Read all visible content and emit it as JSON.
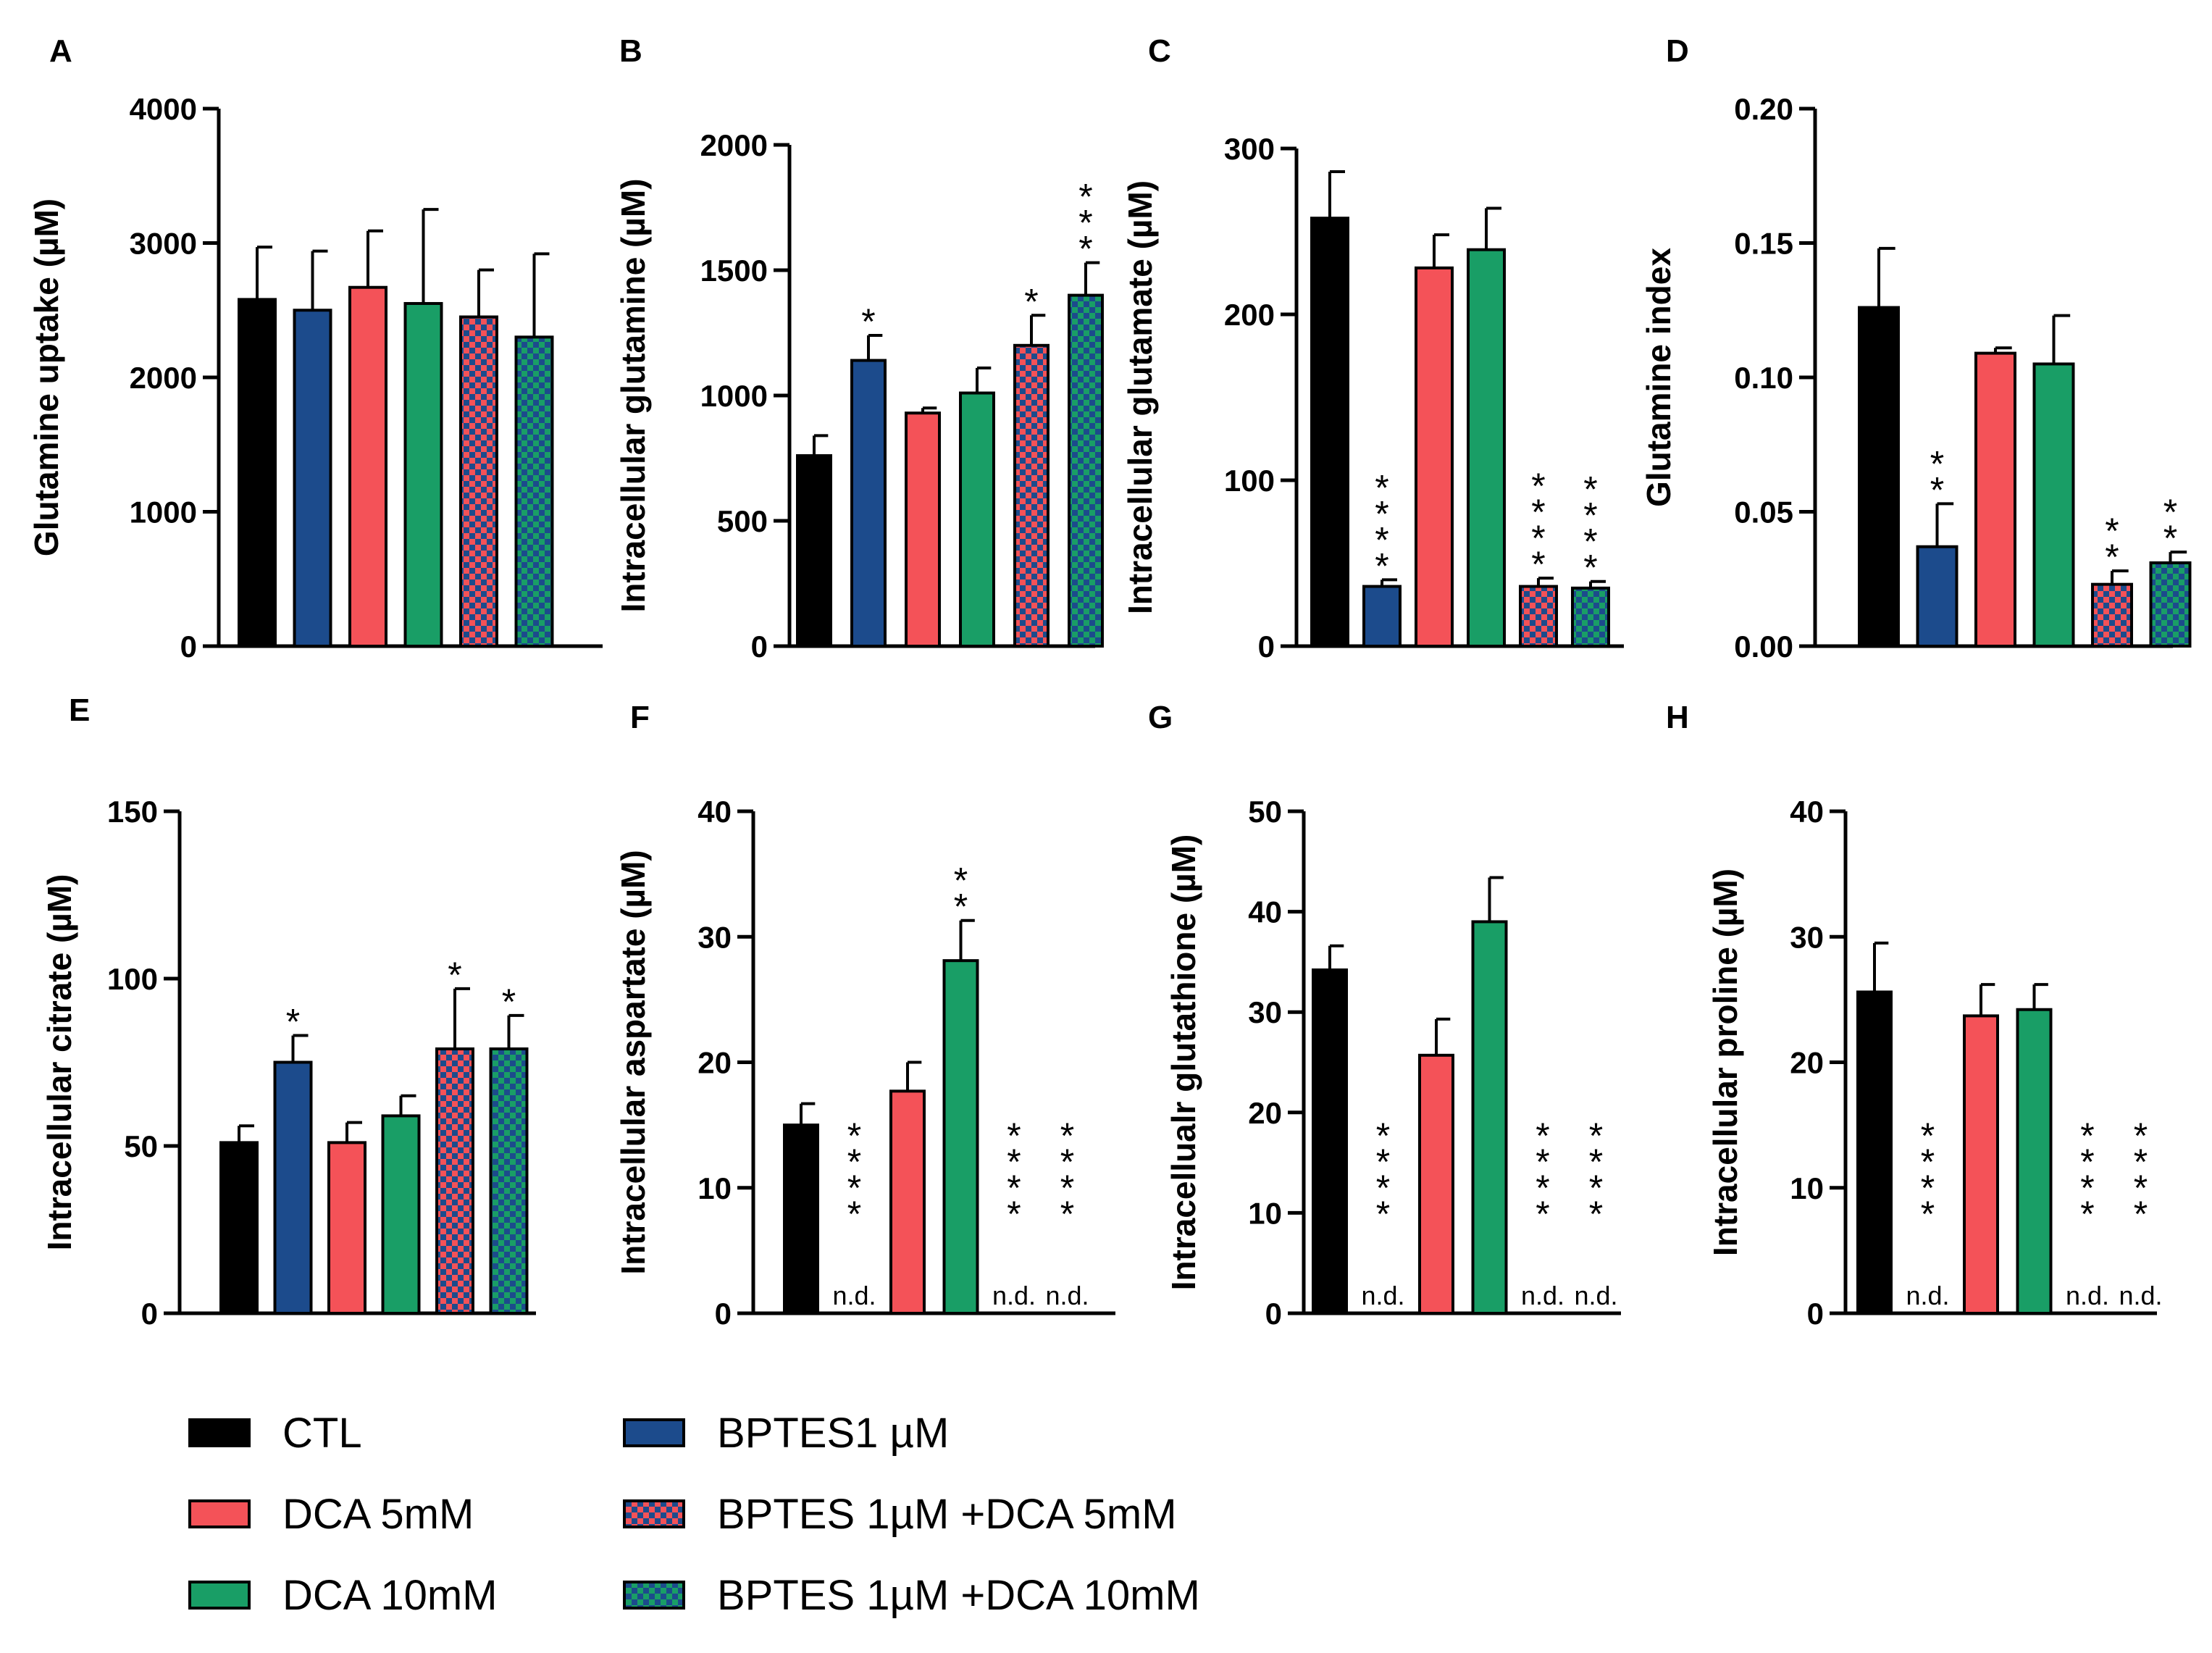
{
  "colors": {
    "CTL": "#000000",
    "BPTES1": "#1c4b8c",
    "DCA5": "#f45258",
    "DCA10": "#199e66",
    "BPTES_DCA5_a": "#f45258",
    "BPTES_DCA5_b": "#1c4b8c",
    "BPTES_DCA10_a": "#199e66",
    "BPTES_DCA10_b": "#1c4b8c"
  },
  "legend": {
    "ctl": "CTL",
    "dca5": "DCA 5mM",
    "dca10": "DCA 10mM",
    "bptes": "BPTES1 µM",
    "bptes_dca5": "BPTES 1µM +DCA 5mM",
    "bptes_dca10": "BPTES 1µM +DCA 10mM"
  },
  "nd_label": "n.d.",
  "chart_data": [
    {
      "panel": "A",
      "type": "bar",
      "title": "",
      "xlabel": "",
      "ylabel": "Glutamine uptake (µM)",
      "ylim": [
        0,
        4000
      ],
      "yticks": [
        0,
        1000,
        2000,
        3000,
        4000
      ],
      "ytick_labels": [
        "0",
        "1000",
        "2000",
        "3000",
        "4000"
      ],
      "categories": [
        "CTL",
        "BPTES1 µM",
        "DCA 5mM",
        "DCA 10mM",
        "BPTES 1µM +DCA 5mM",
        "BPTES 1µM +DCA 10mM"
      ],
      "series": [
        {
          "name": "mean",
          "values": [
            2580,
            2500,
            2670,
            2550,
            2450,
            2300
          ]
        }
      ],
      "errors": [
        390,
        440,
        420,
        700,
        350,
        620
      ],
      "annotations": [
        "",
        "",
        "",
        "",
        "",
        ""
      ],
      "nd": [
        false,
        false,
        false,
        false,
        false,
        false
      ]
    },
    {
      "panel": "B",
      "type": "bar",
      "title": "",
      "xlabel": "",
      "ylabel": "Intracellular glutamine (µM)",
      "ylim": [
        0,
        2000
      ],
      "yticks": [
        0,
        500,
        1000,
        1500,
        2000
      ],
      "ytick_labels": [
        "0",
        "500",
        "1000",
        "1500",
        "2000"
      ],
      "categories": [
        "CTL",
        "BPTES1 µM",
        "DCA 5mM",
        "DCA 10mM",
        "BPTES 1µM +DCA 5mM",
        "BPTES 1µM +DCA 10mM"
      ],
      "series": [
        {
          "name": "mean",
          "values": [
            760,
            1140,
            930,
            1010,
            1200,
            1400
          ]
        }
      ],
      "errors": [
        80,
        100,
        20,
        100,
        120,
        130
      ],
      "annotations": [
        "",
        "*",
        "",
        "",
        "*",
        "***"
      ],
      "nd": [
        false,
        false,
        false,
        false,
        false,
        false
      ]
    },
    {
      "panel": "C",
      "type": "bar",
      "title": "",
      "xlabel": "",
      "ylabel": "Intracellular glutamate  (µM)",
      "ylim": [
        0,
        300
      ],
      "yticks": [
        0,
        100,
        200,
        300
      ],
      "ytick_labels": [
        "0",
        "100",
        "200",
        "300"
      ],
      "categories": [
        "CTL",
        "BPTES1 µM",
        "DCA 5mM",
        "DCA 10mM",
        "BPTES 1µM +DCA 5mM",
        "BPTES 1µM +DCA 10mM"
      ],
      "series": [
        {
          "name": "mean",
          "values": [
            258,
            36,
            228,
            239,
            36,
            35
          ]
        }
      ],
      "errors": [
        28,
        4,
        20,
        25,
        5,
        4
      ],
      "annotations": [
        "",
        "****",
        "",
        "",
        "****",
        "****"
      ],
      "nd": [
        false,
        false,
        false,
        false,
        false,
        false
      ]
    },
    {
      "panel": "D",
      "type": "bar",
      "title": "",
      "xlabel": "",
      "ylabel": "Glutamine index",
      "ylim": [
        0,
        0.2
      ],
      "yticks": [
        0,
        0.05,
        0.1,
        0.15,
        0.2
      ],
      "ytick_labels": [
        "0.00",
        "0.05",
        "0.10",
        "0.15",
        "0.20"
      ],
      "categories": [
        "CTL",
        "BPTES1 µM",
        "DCA 5mM",
        "DCA 10mM",
        "BPTES 1µM +DCA 5mM",
        "BPTES 1µM +DCA 10mM"
      ],
      "series": [
        {
          "name": "mean",
          "values": [
            0.126,
            0.037,
            0.109,
            0.105,
            0.023,
            0.031
          ]
        }
      ],
      "errors": [
        0.022,
        0.016,
        0.002,
        0.018,
        0.005,
        0.004
      ],
      "annotations": [
        "",
        "**",
        "",
        "",
        "**",
        "**"
      ],
      "nd": [
        false,
        false,
        false,
        false,
        false,
        false
      ]
    },
    {
      "panel": "E",
      "type": "bar",
      "title": "",
      "xlabel": "",
      "ylabel": "Intracellular citrate (µM)",
      "ylim": [
        0,
        150
      ],
      "yticks": [
        0,
        50,
        100,
        150
      ],
      "ytick_labels": [
        "0",
        "50",
        "100",
        "150"
      ],
      "categories": [
        "CTL",
        "BPTES1 µM",
        "DCA 5mM",
        "DCA 10mM",
        "BPTES 1µM +DCA 5mM",
        "BPTES 1µM +DCA 10mM"
      ],
      "series": [
        {
          "name": "mean",
          "values": [
            51,
            75,
            51,
            59,
            79,
            79
          ]
        }
      ],
      "errors": [
        5,
        8,
        6,
        6,
        18,
        10
      ],
      "annotations": [
        "",
        "*",
        "",
        "",
        "*",
        "*"
      ],
      "nd": [
        false,
        false,
        false,
        false,
        false,
        false
      ]
    },
    {
      "panel": "F",
      "type": "bar",
      "title": "",
      "xlabel": "",
      "ylabel": "Intracellular aspartate (µM)",
      "ylim": [
        0,
        40
      ],
      "yticks": [
        0,
        10,
        20,
        30,
        40
      ],
      "ytick_labels": [
        "0",
        "10",
        "20",
        "30",
        "40"
      ],
      "categories": [
        "CTL",
        "BPTES1 µM",
        "DCA 5mM",
        "DCA 10mM",
        "BPTES 1µM +DCA 5mM",
        "BPTES 1µM +DCA 10mM"
      ],
      "series": [
        {
          "name": "mean",
          "values": [
            15,
            0,
            17.7,
            28.1,
            0,
            0
          ]
        }
      ],
      "errors": [
        1.7,
        0,
        2.3,
        3.2,
        0,
        0
      ],
      "annotations": [
        "",
        "****",
        "",
        "**",
        "****",
        "****"
      ],
      "nd": [
        false,
        true,
        false,
        false,
        true,
        true
      ]
    },
    {
      "panel": "G",
      "type": "bar",
      "title": "",
      "xlabel": "",
      "ylabel": "Intracellualr glutathione (µM)",
      "ylim": [
        0,
        50
      ],
      "yticks": [
        0,
        10,
        20,
        30,
        40,
        50
      ],
      "ytick_labels": [
        "0",
        "10",
        "20",
        "30",
        "40",
        "50"
      ],
      "categories": [
        "CTL",
        "BPTES1 µM",
        "DCA 5mM",
        "DCA 10mM",
        "BPTES 1µM +DCA 5mM",
        "BPTES 1µM +DCA 10mM"
      ],
      "series": [
        {
          "name": "mean",
          "values": [
            34.2,
            0,
            25.7,
            39,
            0,
            0
          ]
        }
      ],
      "errors": [
        2.4,
        0,
        3.6,
        4.4,
        0,
        0
      ],
      "annotations": [
        "",
        "****",
        "",
        "",
        "****",
        "****"
      ],
      "nd": [
        false,
        true,
        false,
        false,
        true,
        true
      ]
    },
    {
      "panel": "H",
      "type": "bar",
      "title": "",
      "xlabel": "",
      "ylabel": "Intracellular proline (µM)",
      "ylim": [
        0,
        40
      ],
      "yticks": [
        0,
        10,
        20,
        30,
        40
      ],
      "ytick_labels": [
        "0",
        "10",
        "20",
        "30",
        "40"
      ],
      "categories": [
        "CTL",
        "BPTES1 µM",
        "DCA 5mM",
        "DCA 10mM",
        "BPTES 1µM +DCA 5mM",
        "BPTES 1µM +DCA 10mM"
      ],
      "series": [
        {
          "name": "mean",
          "values": [
            25.6,
            0,
            23.7,
            24.2,
            0,
            0
          ]
        }
      ],
      "errors": [
        3.9,
        0,
        2.5,
        2,
        0,
        0
      ],
      "annotations": [
        "",
        "****",
        "",
        "",
        "****",
        "****"
      ],
      "nd": [
        false,
        true,
        false,
        false,
        true,
        true
      ]
    }
  ]
}
